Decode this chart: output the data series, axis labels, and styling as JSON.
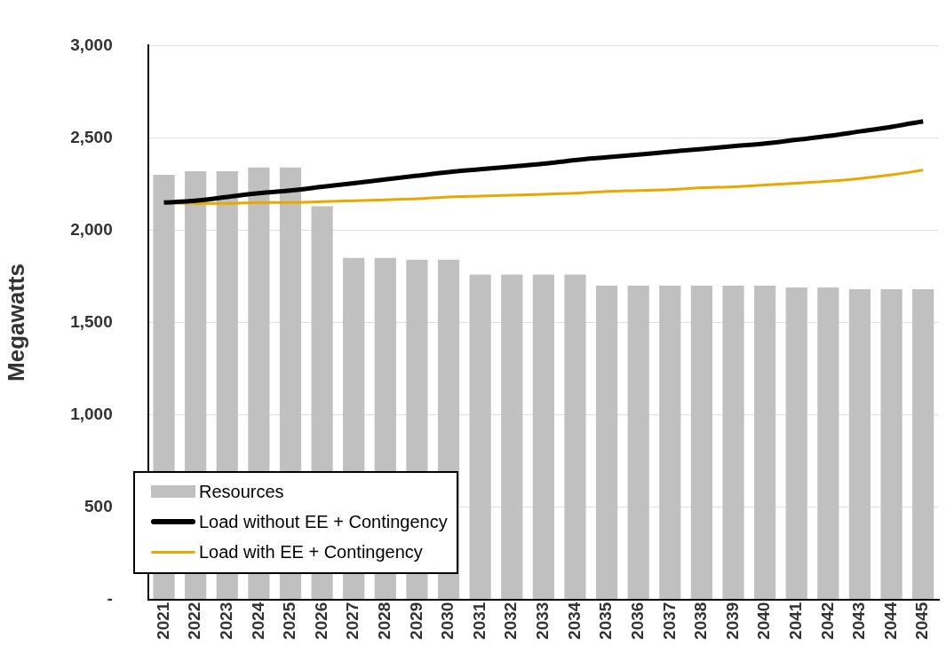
{
  "chart_data": {
    "type": "bar",
    "ylabel": "Megawatts",
    "categories": [
      "2021",
      "2022",
      "2023",
      "2024",
      "2025",
      "2026",
      "2027",
      "2028",
      "2029",
      "2030",
      "2031",
      "2032",
      "2033",
      "2034",
      "2035",
      "2036",
      "2037",
      "2038",
      "2039",
      "2040",
      "2041",
      "2042",
      "2043",
      "2044",
      "2045"
    ],
    "series": [
      {
        "name": "Resources",
        "color": "#c0c0c0",
        "values": [
          2300,
          2320,
          2320,
          2340,
          2340,
          2130,
          1850,
          1850,
          1840,
          1840,
          1760,
          1760,
          1760,
          1760,
          1700,
          1700,
          1700,
          1700,
          1700,
          1700,
          1690,
          1690,
          1680,
          1680,
          1680
        ]
      },
      {
        "name": "Load without EE + Contingency",
        "type": "line",
        "color": "#000000",
        "values": [
          2150,
          2160,
          2180,
          2200,
          2215,
          2235,
          2255,
          2275,
          2295,
          2315,
          2330,
          2345,
          2360,
          2380,
          2395,
          2410,
          2425,
          2440,
          2455,
          2470,
          2490,
          2510,
          2535,
          2560,
          2590
        ]
      },
      {
        "name": "Load with EE + Contingency",
        "type": "line",
        "color": "#e8a800",
        "values": [
          2150,
          2145,
          2145,
          2150,
          2150,
          2155,
          2160,
          2165,
          2170,
          2180,
          2185,
          2190,
          2195,
          2200,
          2210,
          2215,
          2220,
          2230,
          2235,
          2245,
          2255,
          2265,
          2280,
          2300,
          2325
        ]
      }
    ],
    "ylim": [
      0,
      3000
    ],
    "yticks": [
      {
        "value": 0,
        "label": "-"
      },
      500,
      {
        "value": 1000,
        "label": "1,000"
      },
      {
        "value": 1500,
        "label": "1,500"
      },
      {
        "value": 2000,
        "label": "2,000"
      },
      {
        "value": 2500,
        "label": "2,500"
      },
      {
        "value": 3000,
        "label": "3,000"
      }
    ],
    "grid": "y",
    "legend": "bottom left",
    "marker": "none"
  }
}
